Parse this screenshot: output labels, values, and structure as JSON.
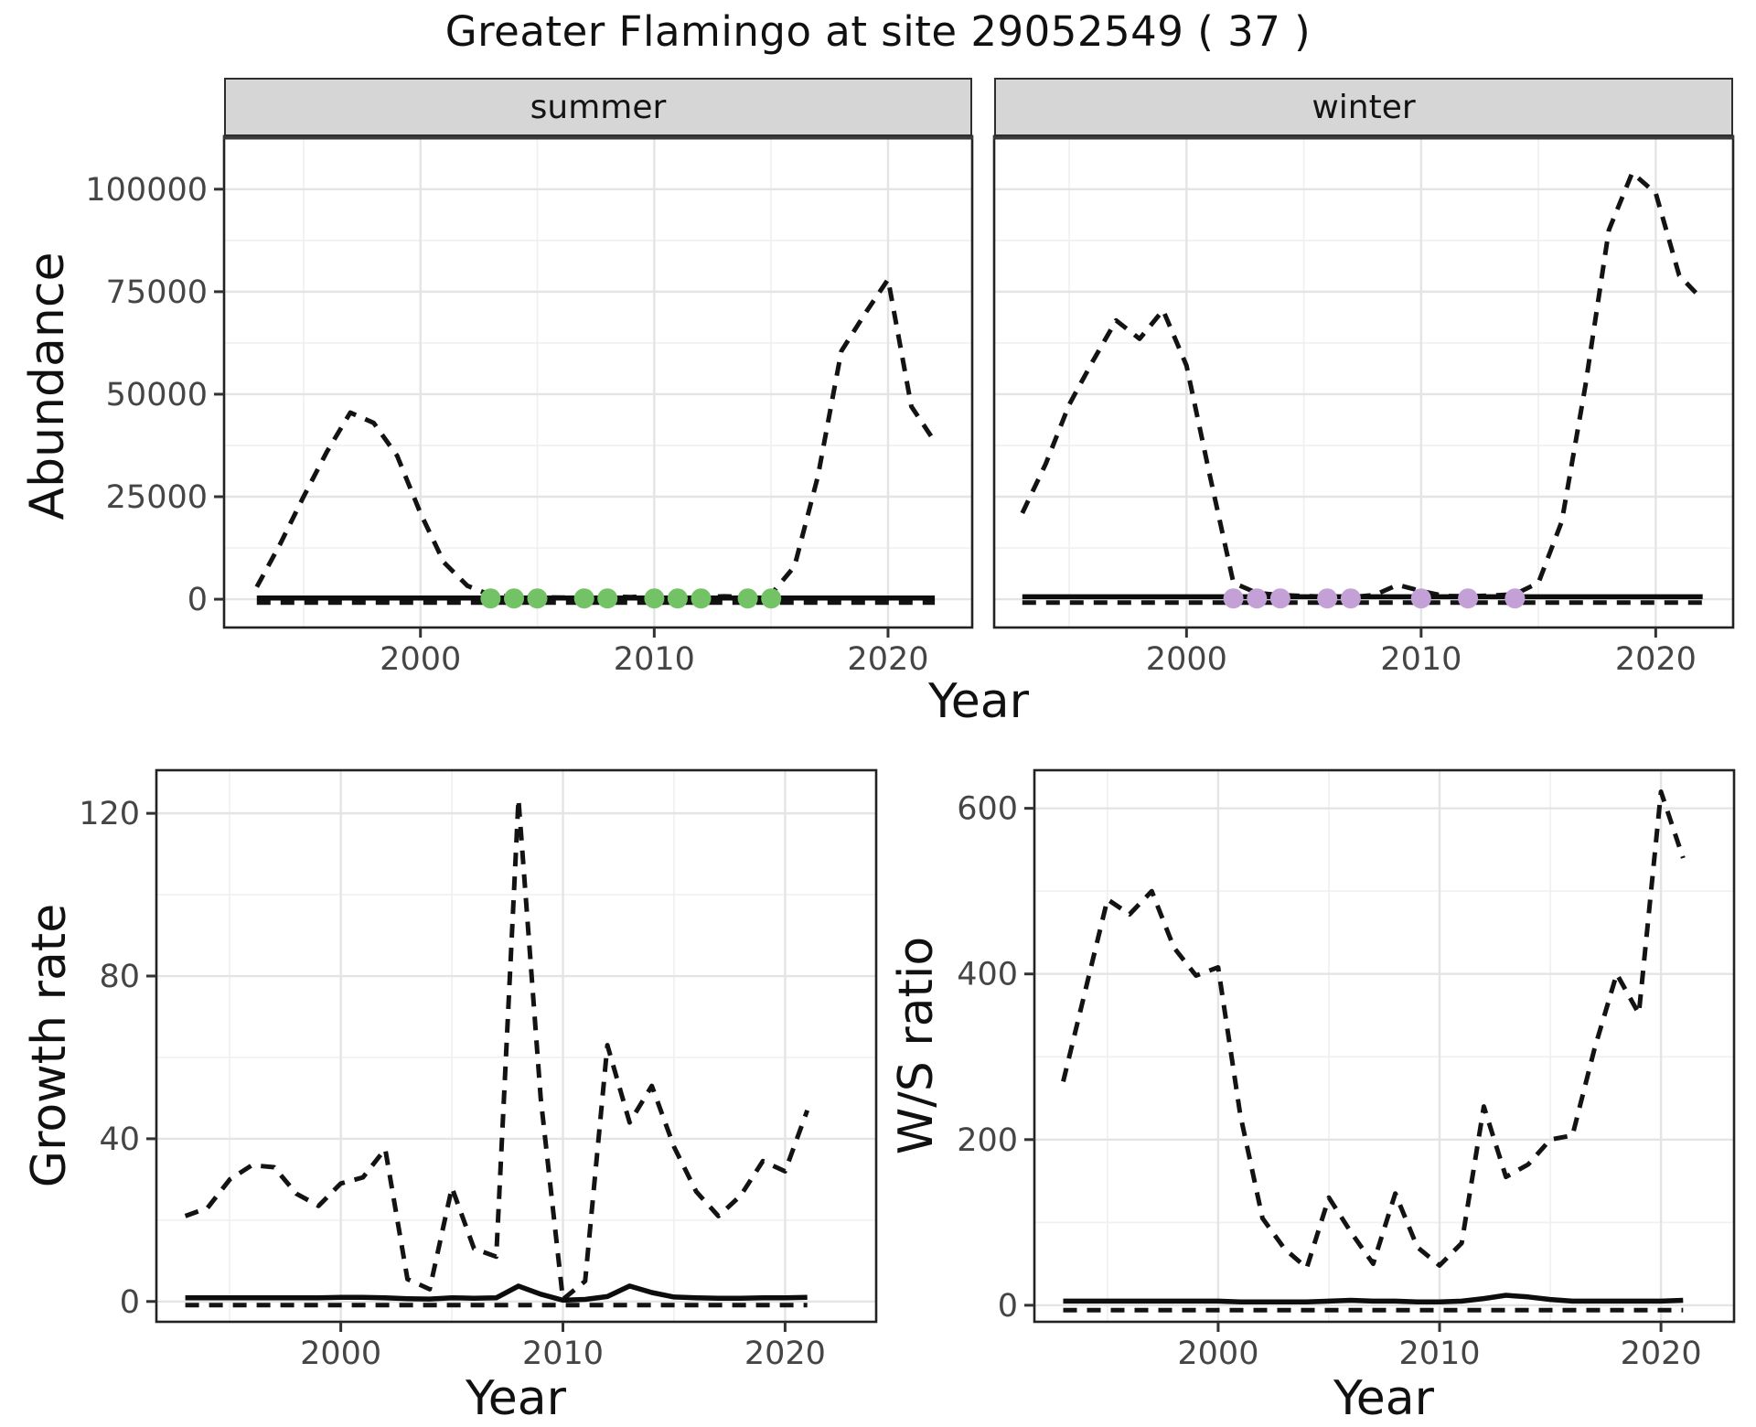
{
  "title": "Greater Flamingo at site 29052549 ( 37 )",
  "facets": {
    "summer": "summer",
    "winter": "winter"
  },
  "axis_titles": {
    "abundance": "Abundance",
    "growth_rate": "Growth rate",
    "ws_ratio": "W/S ratio",
    "year": "Year"
  },
  "colors": {
    "line": "#131313",
    "solid_line": "#0d0d0d",
    "grid_major": "#e4e4e4",
    "grid_minor": "#f0f0f0",
    "panel_border": "#222222",
    "strip_top_line": "#3a3a3a",
    "tick_mark": "#333333",
    "tick_text": "#454545",
    "strip_fill": "#d6d6d6",
    "summer_points": "#74C266",
    "winter_points": "#C3A0D6"
  },
  "chart_data": [
    {
      "id": "abundance_summer",
      "type": "line",
      "facet": "summer",
      "title": "",
      "xlabel": "Year",
      "ylabel": "Abundance",
      "xlim": [
        1991.6,
        2023.6
      ],
      "ylim": [
        -6900,
        112900
      ],
      "x_ticks": [
        2000,
        2010,
        2020
      ],
      "x_tick_labels": [
        "2000",
        "2010",
        "2020"
      ],
      "x_minor": [
        1995,
        2005,
        2015
      ],
      "y_ticks": [
        0,
        25000,
        50000,
        75000,
        100000
      ],
      "y_tick_labels": [
        "0",
        "25000",
        "50000",
        "75000",
        "100000"
      ],
      "y_minor": [
        12500,
        37500,
        62500,
        87500,
        112500
      ],
      "series": [
        {
          "name": "flyway-abundance-dashed",
          "style": "dashed",
          "x": [
            1993,
            1994,
            1995,
            1996,
            1997,
            1998,
            1999,
            2000,
            2001,
            2002,
            2003,
            2004,
            2005,
            2006,
            2007,
            2008,
            2009,
            2010,
            2011,
            2012,
            2013,
            2014,
            2015,
            2016,
            2017,
            2018,
            2019,
            2020,
            2021,
            2022
          ],
          "y": [
            3000,
            13500,
            25000,
            36000,
            45500,
            43000,
            35000,
            21000,
            9000,
            3300,
            1000,
            600,
            500,
            400,
            400,
            700,
            500,
            900,
            600,
            500,
            700,
            500,
            1200,
            8000,
            30000,
            60500,
            69500,
            78000,
            47000,
            38400
          ]
        },
        {
          "name": "site-abundance-solid",
          "style": "solid",
          "x": [
            1993,
            1994,
            1995,
            1996,
            1997,
            1998,
            1999,
            2000,
            2001,
            2002,
            2003,
            2004,
            2005,
            2006,
            2007,
            2008,
            2009,
            2010,
            2011,
            2012,
            2013,
            2014,
            2015,
            2016,
            2017,
            2018,
            2019,
            2020,
            2021,
            2022
          ],
          "y": [
            300,
            300,
            300,
            300,
            300,
            300,
            300,
            300,
            300,
            300,
            300,
            300,
            300,
            300,
            300,
            300,
            300,
            300,
            300,
            300,
            300,
            300,
            300,
            300,
            300,
            300,
            300,
            300,
            300,
            300
          ]
        },
        {
          "name": "site-abundance-dashed-zero",
          "style": "dashed",
          "x": [
            1993,
            1994,
            1995,
            1996,
            1997,
            1998,
            1999,
            2000,
            2001,
            2002,
            2003,
            2004,
            2005,
            2006,
            2007,
            2008,
            2009,
            2010,
            2011,
            2012,
            2013,
            2014,
            2015,
            2016,
            2017,
            2018,
            2019,
            2020,
            2021,
            2022
          ],
          "y": [
            -800,
            -800,
            -800,
            -800,
            -800,
            -800,
            -800,
            -800,
            -800,
            -800,
            -800,
            -800,
            -800,
            -800,
            -800,
            -800,
            -800,
            -800,
            -800,
            -800,
            -800,
            -800,
            -800,
            -800,
            -800,
            -800,
            -800,
            -800,
            -800,
            -800
          ]
        }
      ],
      "points": {
        "name": "summer-observation-points",
        "color_key": "summer_points",
        "x": [
          2003,
          2004,
          2005,
          2007,
          2008,
          2010,
          2011,
          2012,
          2014,
          2015
        ],
        "y": [
          200,
          200,
          200,
          200,
          200,
          200,
          200,
          200,
          200,
          200
        ]
      }
    },
    {
      "id": "abundance_winter",
      "type": "line",
      "facet": "winter",
      "title": "",
      "xlabel": "Year",
      "ylabel": "",
      "xlim": [
        1991.8,
        2023.3
      ],
      "ylim": [
        -6900,
        112900
      ],
      "x_ticks": [
        2000,
        2010,
        2020
      ],
      "x_tick_labels": [
        "2000",
        "2010",
        "2020"
      ],
      "x_minor": [
        1995,
        2005,
        2015
      ],
      "y_ticks": [
        0,
        25000,
        50000,
        75000,
        100000
      ],
      "y_tick_labels": [],
      "y_minor": [
        12500,
        37500,
        62500,
        87500,
        112500
      ],
      "series": [
        {
          "name": "flyway-abundance-dashed",
          "style": "dashed",
          "x": [
            1993,
            1994,
            1995,
            1996,
            1997,
            1998,
            1999,
            2000,
            2001,
            2002,
            2003,
            2004,
            2005,
            2006,
            2007,
            2008,
            2009,
            2010,
            2011,
            2012,
            2013,
            2014,
            2015,
            2016,
            2017,
            2018,
            2019,
            2020,
            2021,
            2022
          ],
          "y": [
            21000,
            33000,
            47500,
            58000,
            68000,
            63500,
            70500,
            57000,
            30000,
            4000,
            1500,
            1000,
            800,
            600,
            500,
            1000,
            3500,
            2000,
            800,
            700,
            900,
            1200,
            4000,
            19000,
            52000,
            90000,
            104000,
            99000,
            79000,
            73000
          ]
        },
        {
          "name": "site-abundance-solid",
          "style": "solid",
          "x": [
            1993,
            1994,
            1995,
            1996,
            1997,
            1998,
            1999,
            2000,
            2001,
            2002,
            2003,
            2004,
            2005,
            2006,
            2007,
            2008,
            2009,
            2010,
            2011,
            2012,
            2013,
            2014,
            2015,
            2016,
            2017,
            2018,
            2019,
            2020,
            2021,
            2022
          ],
          "y": [
            600,
            600,
            600,
            600,
            600,
            600,
            600,
            600,
            600,
            600,
            600,
            600,
            600,
            600,
            600,
            600,
            600,
            600,
            600,
            600,
            600,
            600,
            600,
            600,
            600,
            600,
            600,
            600,
            600,
            600
          ]
        },
        {
          "name": "site-abundance-dashed-zero",
          "style": "dashed",
          "x": [
            1993,
            1994,
            1995,
            1996,
            1997,
            1998,
            1999,
            2000,
            2001,
            2002,
            2003,
            2004,
            2005,
            2006,
            2007,
            2008,
            2009,
            2010,
            2011,
            2012,
            2013,
            2014,
            2015,
            2016,
            2017,
            2018,
            2019,
            2020,
            2021,
            2022
          ],
          "y": [
            -800,
            -800,
            -800,
            -800,
            -800,
            -800,
            -800,
            -800,
            -800,
            -800,
            -800,
            -800,
            -800,
            -800,
            -800,
            -800,
            -800,
            -800,
            -800,
            -800,
            -800,
            -800,
            -800,
            -800,
            -800,
            -800,
            -800,
            -800,
            -800,
            -800
          ]
        }
      ],
      "points": {
        "name": "winter-observation-points",
        "color_key": "winter_points",
        "x": [
          2002,
          2003,
          2004,
          2006,
          2007,
          2010,
          2012,
          2014
        ],
        "y": [
          200,
          200,
          200,
          200,
          200,
          200,
          200,
          200
        ]
      }
    },
    {
      "id": "growth_rate",
      "type": "line",
      "facet": "",
      "title": "",
      "xlabel": "Year",
      "ylabel": "Growth rate",
      "xlim": [
        1991.7,
        2024.1
      ],
      "ylim": [
        -5,
        130.6
      ],
      "x_ticks": [
        2000,
        2010,
        2020
      ],
      "x_tick_labels": [
        "2000",
        "2010",
        "2020"
      ],
      "x_minor": [
        1995,
        2005,
        2015
      ],
      "y_ticks": [
        0,
        40,
        80,
        120
      ],
      "y_tick_labels": [
        "0",
        "40",
        "80",
        "120"
      ],
      "y_minor": [
        20,
        60,
        100
      ],
      "series": [
        {
          "name": "flyway-growth-dashed",
          "style": "dashed",
          "x": [
            1993,
            1994,
            1995,
            1996,
            1997,
            1998,
            1999,
            2000,
            2001,
            2002,
            2003,
            2004,
            2005,
            2006,
            2007,
            2008,
            2009,
            2010,
            2011,
            2012,
            2013,
            2014,
            2015,
            2016,
            2017,
            2018,
            2019,
            2020,
            2021
          ],
          "y": [
            21,
            23,
            30,
            33.5,
            33,
            26.5,
            23.5,
            29,
            30.5,
            37.5,
            5.5,
            3,
            28,
            13,
            11,
            123.5,
            50,
            0.5,
            5,
            63,
            44,
            53,
            38,
            27,
            21,
            26,
            34.5,
            32,
            47
          ]
        },
        {
          "name": "site-growth-solid",
          "style": "solid",
          "x": [
            1993,
            1994,
            1995,
            1996,
            1997,
            1998,
            1999,
            2000,
            2001,
            2002,
            2003,
            2004,
            2005,
            2006,
            2007,
            2008,
            2009,
            2010,
            2011,
            2012,
            2013,
            2014,
            2015,
            2016,
            2017,
            2018,
            2019,
            2020,
            2021
          ],
          "y": [
            0.9,
            0.9,
            0.9,
            0.9,
            0.9,
            0.9,
            0.9,
            1.0,
            1.0,
            0.9,
            0.7,
            0.6,
            0.9,
            0.8,
            0.9,
            3.8,
            1.8,
            0.3,
            0.5,
            1.2,
            3.8,
            2.2,
            1.1,
            0.9,
            0.8,
            0.8,
            0.9,
            0.9,
            1.0
          ]
        },
        {
          "name": "site-growth-dashed-zero",
          "style": "dashed",
          "x": [
            1993,
            1994,
            1995,
            1996,
            1997,
            1998,
            1999,
            2000,
            2001,
            2002,
            2003,
            2004,
            2005,
            2006,
            2007,
            2008,
            2009,
            2010,
            2011,
            2012,
            2013,
            2014,
            2015,
            2016,
            2017,
            2018,
            2019,
            2020,
            2021
          ],
          "y": [
            -0.9,
            -0.9,
            -0.9,
            -0.9,
            -0.9,
            -0.9,
            -0.9,
            -0.9,
            -0.9,
            -0.9,
            -0.9,
            -0.9,
            -0.9,
            -0.9,
            -0.9,
            -0.9,
            -0.9,
            -0.9,
            -0.9,
            -0.9,
            -0.9,
            -0.9,
            -0.9,
            -0.9,
            -0.9,
            -0.9,
            -0.9,
            -0.9,
            -0.9
          ]
        }
      ],
      "points": null
    },
    {
      "id": "ws_ratio",
      "type": "line",
      "facet": "",
      "title": "",
      "xlabel": "Year",
      "ylabel": "W/S ratio",
      "xlim": [
        1991.7,
        2023.3
      ],
      "ylim": [
        -20,
        646
      ],
      "x_ticks": [
        2000,
        2010,
        2020
      ],
      "x_tick_labels": [
        "2000",
        "2010",
        "2020"
      ],
      "x_minor": [
        1995,
        2005,
        2015
      ],
      "y_ticks": [
        0,
        200,
        400,
        600
      ],
      "y_tick_labels": [
        "0",
        "200",
        "400",
        "600"
      ],
      "y_minor": [
        100,
        300,
        500
      ],
      "series": [
        {
          "name": "flyway-ws-ratio-dashed",
          "style": "dashed",
          "x": [
            1993,
            1994,
            1995,
            1996,
            1997,
            1998,
            1999,
            2000,
            2001,
            2002,
            2003,
            2004,
            2005,
            2006,
            2007,
            2008,
            2009,
            2010,
            2011,
            2012,
            2013,
            2014,
            2015,
            2016,
            2017,
            2018,
            2019,
            2020,
            2021
          ],
          "y": [
            270,
            380,
            490,
            472,
            500,
            432,
            398,
            408,
            230,
            105,
            68,
            45,
            130,
            88,
            50,
            135,
            70,
            48,
            75,
            240,
            155,
            170,
            200,
            205,
            310,
            400,
            352,
            620,
            540
          ]
        },
        {
          "name": "site-ws-ratio-solid",
          "style": "solid",
          "x": [
            1993,
            1994,
            1995,
            1996,
            1997,
            1998,
            1999,
            2000,
            2001,
            2002,
            2003,
            2004,
            2005,
            2006,
            2007,
            2008,
            2009,
            2010,
            2011,
            2012,
            2013,
            2014,
            2015,
            2016,
            2017,
            2018,
            2019,
            2020,
            2021
          ],
          "y": [
            5,
            5,
            5,
            5,
            5,
            5,
            5,
            5,
            4,
            4,
            4,
            4,
            5,
            6,
            5,
            5,
            4,
            4,
            5,
            8,
            12,
            10,
            7,
            5,
            5,
            5,
            5,
            5,
            6
          ]
        },
        {
          "name": "site-ws-ratio-dashed-zero",
          "style": "dashed",
          "x": [
            1993,
            1994,
            1995,
            1996,
            1997,
            1998,
            1999,
            2000,
            2001,
            2002,
            2003,
            2004,
            2005,
            2006,
            2007,
            2008,
            2009,
            2010,
            2011,
            2012,
            2013,
            2014,
            2015,
            2016,
            2017,
            2018,
            2019,
            2020,
            2021
          ],
          "y": [
            -6,
            -6,
            -6,
            -6,
            -6,
            -6,
            -6,
            -6,
            -6,
            -6,
            -6,
            -6,
            -6,
            -6,
            -6,
            -6,
            -6,
            -6,
            -6,
            -6,
            -6,
            -6,
            -6,
            -6,
            -6,
            -6,
            -6,
            -6,
            -6
          ]
        }
      ],
      "points": null
    }
  ]
}
